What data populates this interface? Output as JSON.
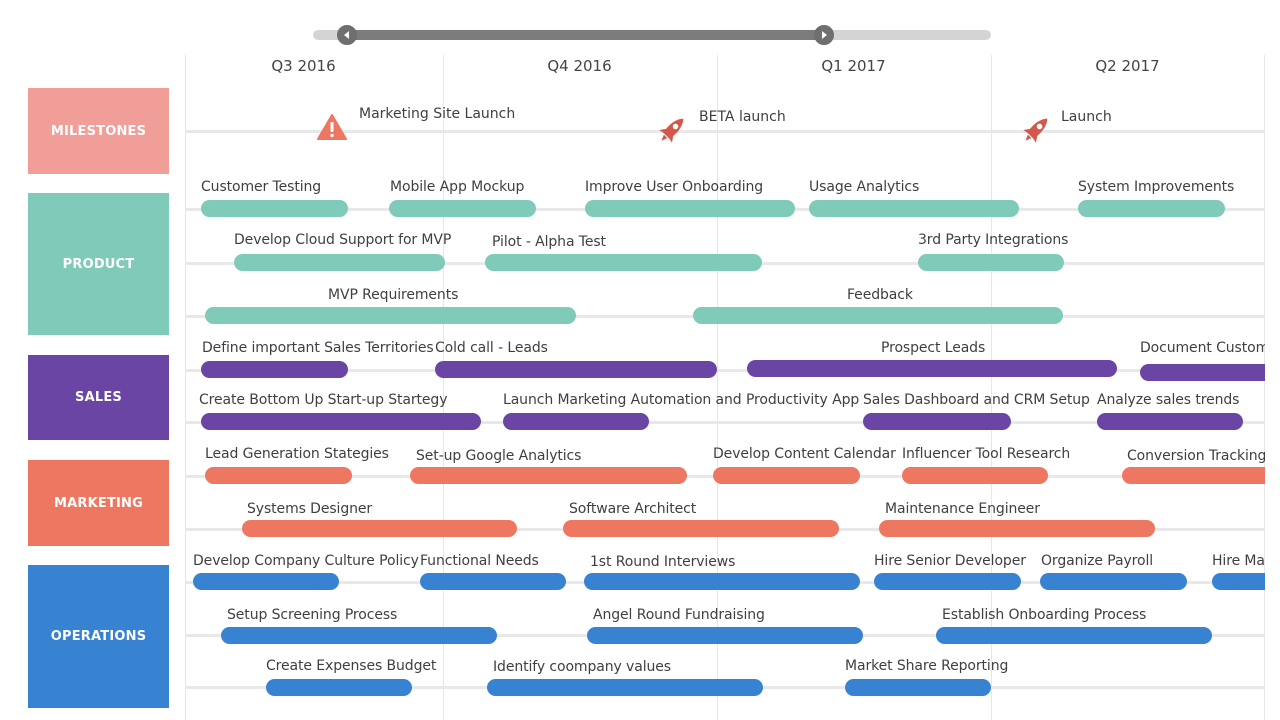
{
  "timeline": {
    "quarters": [
      "Q3 2016",
      "Q4 2016",
      "Q1 2017",
      "Q2 2017"
    ]
  },
  "colors": {
    "milestones": "#f19e98",
    "product": "#7fcab9",
    "sales": "#6a45a3",
    "marketing": "#ee7761",
    "operations": "#3882d2",
    "warning": "#ee7761",
    "rocket": "#d5574a"
  },
  "groups": {
    "milestones": "MILESTONES",
    "product": "PRODUCT",
    "sales": "SALES",
    "marketing": "MARKETING",
    "operations": "OPERATIONS"
  },
  "milestones": [
    {
      "label": "Marketing Site Launch",
      "icon": "warning-icon"
    },
    {
      "label": "BETA launch",
      "icon": "rocket-icon"
    },
    {
      "label": "Launch",
      "icon": "rocket-icon"
    }
  ],
  "tasks": {
    "product": [
      "Customer Testing",
      "Mobile App Mockup",
      "Improve User Onboarding",
      "Usage Analytics",
      "System Improvements",
      "Develop Cloud Support for MVP",
      "Pilot - Alpha Test",
      "3rd Party Integrations",
      "MVP Requirements",
      "Feedback"
    ],
    "sales": [
      "Define important Sales Territories",
      "Cold call - Leads",
      "Prospect Leads",
      "Document Custom",
      "Create Bottom Up Start-up Startegy",
      "Launch Marketing Automation and Productivity App",
      "Sales Dashboard and CRM Setup",
      "Analyze sales trends"
    ],
    "marketing": [
      "Lead Generation Stategies",
      "Set-up Google Analytics",
      "Develop Content Calendar",
      "Influencer Tool Research",
      "Conversion Tracking",
      "Systems Designer",
      "Software Architect",
      "Maintenance Engineer"
    ],
    "operations": [
      "Develop Company Culture Policy",
      "Functional Needs",
      "1st Round Interviews",
      "Hire Senior Developer",
      "Organize Payroll",
      "Hire Ma",
      "Setup Screening Process",
      "Angel Round Fundraising",
      "Establish Onboarding Process",
      "Create Expenses Budget",
      "Identify coompany values",
      "Market Share Reporting"
    ]
  }
}
